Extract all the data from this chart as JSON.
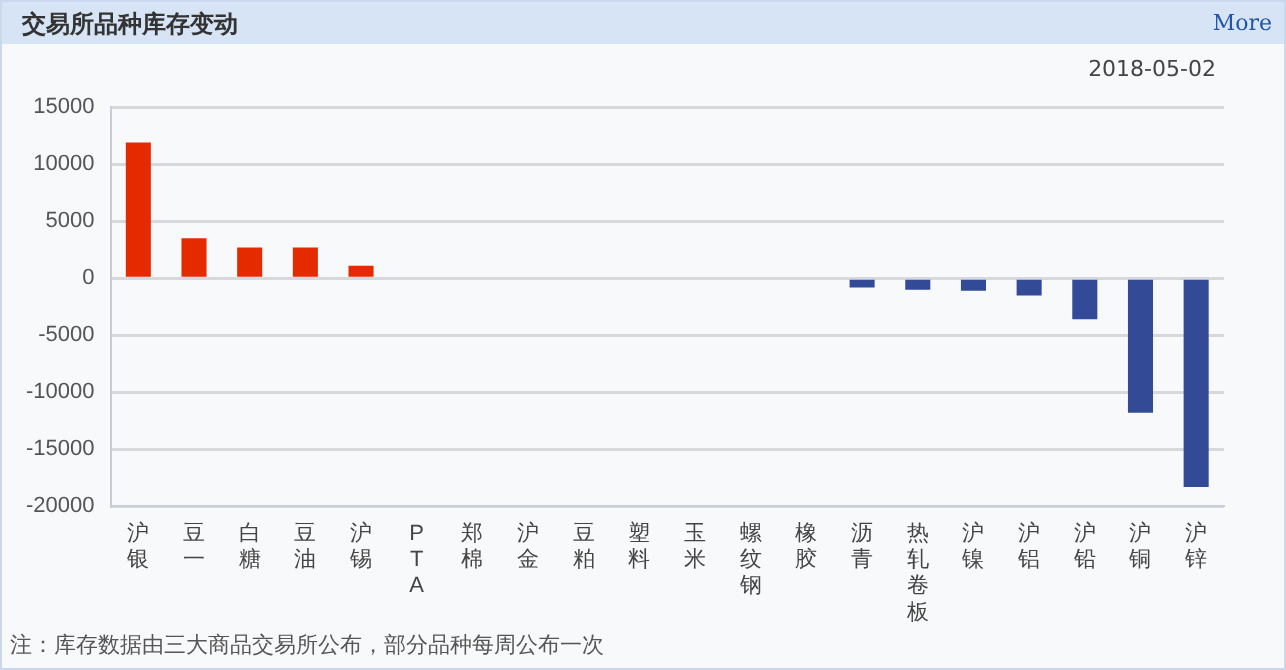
{
  "chart_data": {
    "type": "bar",
    "title": "交易所品种库存变动",
    "subtitle": "2018-05-02",
    "annotations": [
      "More",
      "注：库存数据由三大商品交易所公布，部分品种每周公布一次"
    ],
    "categories": [
      "沪银",
      "豆一",
      "白糖",
      "豆油",
      "沪锡",
      "PTA",
      "郑棉",
      "沪金",
      "豆粕",
      "塑料",
      "玉米",
      "螺纹钢",
      "橡胶",
      "沥青",
      "热轧卷板",
      "沪镍",
      "沪铝",
      "沪铅",
      "沪铜",
      "沪锌"
    ],
    "values": [
      11900,
      3500,
      2700,
      2700,
      1100,
      0,
      0,
      0,
      0,
      0,
      0,
      0,
      0,
      -800,
      -1000,
      -1100,
      -1500,
      -3600,
      -11800,
      -18300
    ],
    "colors": [
      "#e62a00",
      "#e62a00",
      "#e62a00",
      "#e62a00",
      "#e62a00",
      "#e62a00",
      "#e62a00",
      "#e62a00",
      "#e62a00",
      "#e62a00",
      "#e62a00",
      "#e62a00",
      "#334a96",
      "#334a96",
      "#334a96",
      "#334a96",
      "#334a96",
      "#334a96",
      "#334a96",
      "#334a96"
    ],
    "ylim": [
      -20000,
      15000
    ],
    "yticks": [
      -20000,
      -15000,
      -10000,
      -5000,
      0,
      5000,
      10000,
      15000
    ],
    "grid": "y",
    "legend": false
  }
}
